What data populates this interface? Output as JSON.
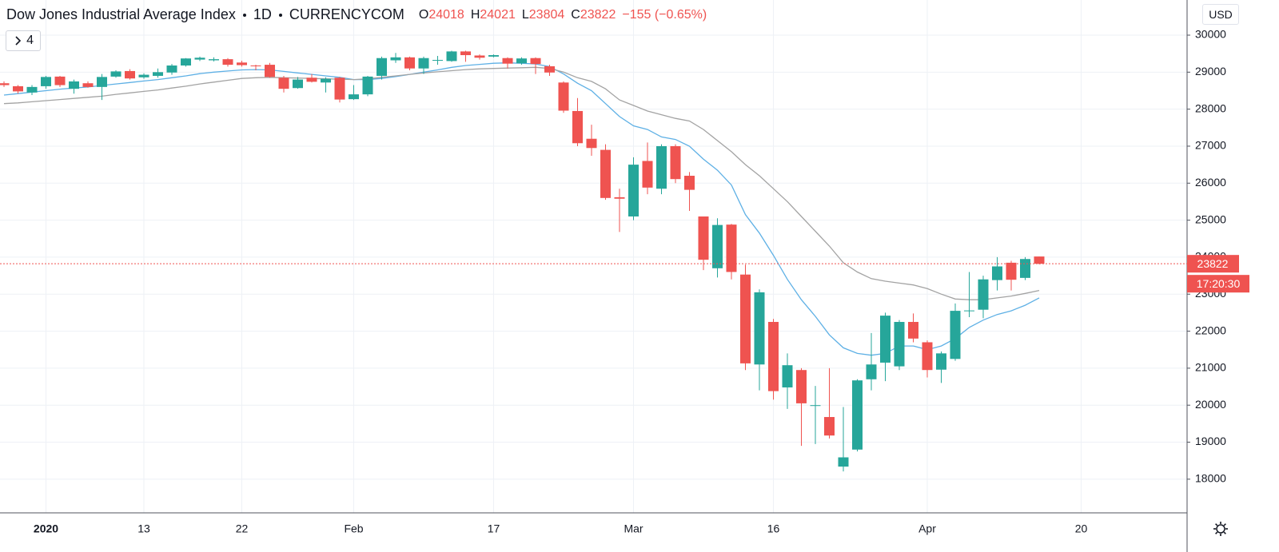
{
  "chart_data": {
    "type": "candlestick",
    "title": "Dow Jones Industrial Average Index",
    "interval": "1D",
    "source": "CURRENCYCOM",
    "ohlc_letters": [
      "O",
      "H",
      "L",
      "C"
    ],
    "change": "−155 (−0.65%)",
    "indicators_hidden": 4,
    "currency": "USD",
    "countdown": "17:20:30",
    "up_color": "#26a69a",
    "down_color": "#ef5350",
    "grid": true,
    "ylim": [
      17090,
      30950
    ],
    "yticks": [
      18000,
      19000,
      20000,
      21000,
      22000,
      23000,
      24000,
      25000,
      26000,
      27000,
      28000,
      29000,
      30000
    ],
    "categories": [
      null,
      null,
      null,
      "2020",
      null,
      null,
      null,
      null,
      null,
      null,
      "13",
      null,
      null,
      null,
      null,
      null,
      null,
      "22",
      null,
      null,
      null,
      null,
      null,
      null,
      null,
      "Feb",
      null,
      null,
      null,
      null,
      null,
      null,
      null,
      null,
      null,
      "17",
      null,
      null,
      null,
      null,
      null,
      null,
      null,
      null,
      null,
      "Mar",
      null,
      null,
      null,
      null,
      null,
      null,
      null,
      null,
      null,
      "16",
      null,
      null,
      null,
      null,
      null,
      null,
      null,
      null,
      null,
      null,
      "Apr",
      null,
      null,
      null,
      null,
      null,
      null,
      null,
      null,
      null,
      null,
      "20"
    ],
    "open": [
      28700,
      28620,
      28450,
      28620,
      28880,
      28550,
      28700,
      28600,
      28880,
      29030,
      28860,
      28900,
      28990,
      29180,
      29340,
      29320,
      29350,
      29260,
      29180,
      29200,
      28850,
      28570,
      28850,
      28720,
      28850,
      28270,
      28400,
      28900,
      29320,
      29400,
      29100,
      29310,
      29300,
      29560,
      29450,
      29420,
      29380,
      29240,
      29380,
      29160,
      28720,
      27950,
      27200,
      26900,
      25620,
      25100,
      26600,
      25850,
      27000,
      26200,
      25100,
      23700,
      24880,
      23530,
      21100,
      22250,
      20480,
      20950,
      19980,
      19680,
      18340,
      18800,
      20700,
      21150,
      21050,
      22250,
      21700,
      20960,
      21250,
      22540,
      22580,
      23380,
      23850,
      23440,
      24018,
      null,
      null,
      null
    ],
    "high": [
      28750,
      28650,
      28650,
      28900,
      28900,
      28800,
      28750,
      28950,
      29050,
      29080,
      28970,
      29100,
      29220,
      29380,
      29420,
      29400,
      29380,
      29310,
      29200,
      29250,
      28900,
      28870,
      28950,
      28860,
      28870,
      28650,
      28900,
      29420,
      29520,
      29420,
      29420,
      29440,
      29580,
      29580,
      29480,
      29480,
      29400,
      29400,
      29400,
      29200,
      28750,
      28300,
      27580,
      27050,
      25850,
      26700,
      27100,
      27050,
      27050,
      26300,
      25100,
      25050,
      24900,
      23800,
      23130,
      22330,
      21400,
      21000,
      20520,
      21000,
      19950,
      20700,
      21950,
      22500,
      22300,
      22480,
      21750,
      21450,
      22750,
      23600,
      23500,
      24000,
      23900,
      24000,
      24021,
      null,
      null,
      null
    ],
    "low": [
      28600,
      28420,
      28380,
      28550,
      28600,
      28420,
      28580,
      28250,
      28850,
      28800,
      28820,
      28850,
      28930,
      29150,
      29300,
      29290,
      29150,
      29150,
      29050,
      28850,
      28450,
      28550,
      28720,
      28450,
      28180,
      28250,
      28350,
      28800,
      29250,
      29050,
      28950,
      29200,
      29280,
      29280,
      29340,
      29400,
      29100,
      29200,
      28950,
      28900,
      27900,
      27000,
      26740,
      25550,
      24680,
      25000,
      25700,
      25700,
      26000,
      25250,
      23650,
      23450,
      23400,
      20950,
      20400,
      20150,
      19900,
      18900,
      18950,
      19100,
      18210,
      18750,
      20400,
      20650,
      20950,
      21700,
      20750,
      20600,
      21200,
      22380,
      22350,
      23100,
      23100,
      23380,
      23804,
      null,
      null,
      null
    ],
    "close": [
      28650,
      28480,
      28600,
      28870,
      28650,
      28750,
      28600,
      28870,
      29020,
      28830,
      28930,
      29000,
      29180,
      29370,
      29390,
      29350,
      29200,
      29190,
      29170,
      28870,
      28550,
      28800,
      28740,
      28820,
      28260,
      28400,
      28880,
      29380,
      29400,
      29100,
      29380,
      29330,
      29560,
      29460,
      29390,
      29460,
      29230,
      29370,
      29220,
      28990,
      27960,
      27080,
      26950,
      25600,
      25580,
      26500,
      25880,
      27000,
      26110,
      25820,
      23930,
      24870,
      23600,
      21130,
      23050,
      20380,
      21080,
      20050,
      20000,
      19180,
      18590,
      20670,
      21100,
      22420,
      22250,
      21800,
      20950,
      21400,
      22550,
      22560,
      23400,
      23750,
      23390,
      23950,
      23822,
      null,
      null,
      null
    ],
    "lines": [
      {
        "color": "#5eb0e5",
        "values": [
          28380,
          28420,
          28460,
          28500,
          28540,
          28570,
          28600,
          28640,
          28680,
          28720,
          28760,
          28800,
          28850,
          28900,
          28960,
          29000,
          29030,
          29060,
          29070,
          29060,
          29020,
          28980,
          28940,
          28900,
          28860,
          28800,
          28800,
          28830,
          28880,
          28940,
          29000,
          29060,
          29130,
          29180,
          29210,
          29240,
          29250,
          29240,
          29220,
          29150,
          28950,
          28700,
          28500,
          28150,
          27800,
          27550,
          27450,
          27250,
          27180,
          27000,
          26650,
          26350,
          25950,
          25150,
          24650,
          24050,
          23400,
          22850,
          22400,
          21900,
          21550,
          21400,
          21350,
          21400,
          21600,
          21600,
          21500,
          21600,
          21800,
          22100,
          22300,
          22450,
          22550,
          22700,
          22900,
          null,
          null,
          null
        ]
      },
      {
        "color": "#a3a3a3",
        "values": [
          28150,
          28170,
          28200,
          28230,
          28260,
          28290,
          28320,
          28350,
          28400,
          28440,
          28480,
          28520,
          28570,
          28620,
          28680,
          28730,
          28780,
          28830,
          28850,
          28860,
          28850,
          28840,
          28830,
          28820,
          28810,
          28800,
          28820,
          28860,
          28900,
          28940,
          28980,
          29010,
          29040,
          29070,
          29090,
          29100,
          29110,
          29120,
          29130,
          29100,
          29000,
          28850,
          28750,
          28550,
          28250,
          28100,
          27950,
          27850,
          27750,
          27680,
          27450,
          27150,
          26850,
          26500,
          26200,
          25850,
          25500,
          25100,
          24700,
          24300,
          23850,
          23600,
          23420,
          23350,
          23300,
          23250,
          23150,
          23000,
          22870,
          22850,
          22850,
          22900,
          22950,
          23020,
          23100,
          null,
          null,
          null
        ]
      }
    ]
  }
}
